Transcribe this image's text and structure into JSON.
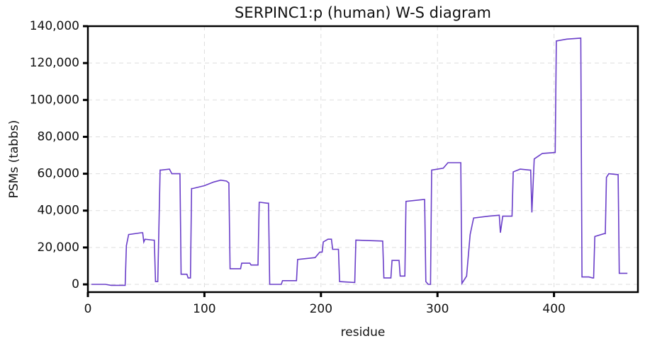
{
  "chart_data": {
    "type": "line",
    "title": "SERPINC1:p (human) W-S diagram",
    "x_label": "residue",
    "y_label": "PSMs (tabbs)",
    "x": [
      3,
      15,
      20,
      32,
      33,
      35,
      46,
      47,
      48,
      49,
      56,
      57,
      58,
      60,
      62,
      63,
      70,
      72,
      78,
      79,
      80,
      85,
      86,
      88,
      89,
      90,
      100,
      108,
      114,
      119,
      121,
      122,
      123,
      131,
      132,
      139,
      140,
      146,
      147,
      148,
      154,
      155,
      156,
      166,
      167,
      169,
      178,
      179,
      180,
      195,
      199,
      201,
      202,
      206,
      209,
      210,
      215,
      216,
      229,
      230,
      253,
      254,
      260,
      261,
      267,
      268,
      272,
      273,
      288,
      289,
      290,
      292,
      294,
      295,
      305,
      309,
      319,
      320,
      321,
      325,
      328,
      331,
      344,
      353,
      354,
      356,
      364,
      365,
      371,
      379,
      380,
      381,
      383,
      390,
      401,
      402,
      411,
      423,
      424,
      430,
      433,
      434,
      435,
      443,
      444,
      445,
      447,
      455,
      456,
      463
    ],
    "series": [
      {
        "name": "PSMs",
        "color": "#6a3ec9",
        "values": [
          0,
          0,
          -500,
          -500,
          21000,
          27000,
          28000,
          28000,
          23000,
          24500,
          24000,
          24000,
          1500,
          1500,
          62000,
          62000,
          62500,
          60000,
          60000,
          60000,
          5500,
          5500,
          3500,
          3500,
          52000,
          52000,
          53500,
          55500,
          56500,
          56000,
          55000,
          8500,
          8500,
          8500,
          11500,
          11500,
          10500,
          10500,
          44500,
          44500,
          44000,
          44000,
          0,
          0,
          2000,
          2000,
          2000,
          2000,
          13500,
          14500,
          17500,
          17500,
          23000,
          24500,
          24500,
          19000,
          19000,
          1500,
          1000,
          24000,
          23500,
          3500,
          3500,
          13000,
          13000,
          4500,
          4500,
          45000,
          46000,
          46000,
          1500,
          0,
          0,
          62000,
          63000,
          66000,
          66000,
          66000,
          500,
          4500,
          27000,
          36000,
          37000,
          37500,
          28000,
          37000,
          37000,
          61000,
          62500,
          62000,
          62000,
          39000,
          68000,
          71000,
          71500,
          132000,
          133000,
          133500,
          4000,
          4000,
          3500,
          3500,
          26000,
          27500,
          27500,
          58000,
          60000,
          59500,
          6000,
          6000
        ]
      }
    ],
    "xlim": [
      0,
      472
    ],
    "xticks": [
      0,
      100,
      200,
      300,
      400
    ],
    "ylim": [
      -4200,
      140000
    ],
    "yticks": [
      0,
      {
        "value": 20000,
        "label": "20,000"
      },
      {
        "value": 40000,
        "label": "40,000"
      },
      {
        "value": 60000,
        "label": "60,000"
      },
      {
        "value": 80000,
        "label": "80,000"
      },
      {
        "value": 100000,
        "label": "100,000"
      },
      {
        "value": 120000,
        "label": "120,000"
      },
      {
        "value": 140000,
        "label": "140,000"
      }
    ],
    "grid": true
  }
}
